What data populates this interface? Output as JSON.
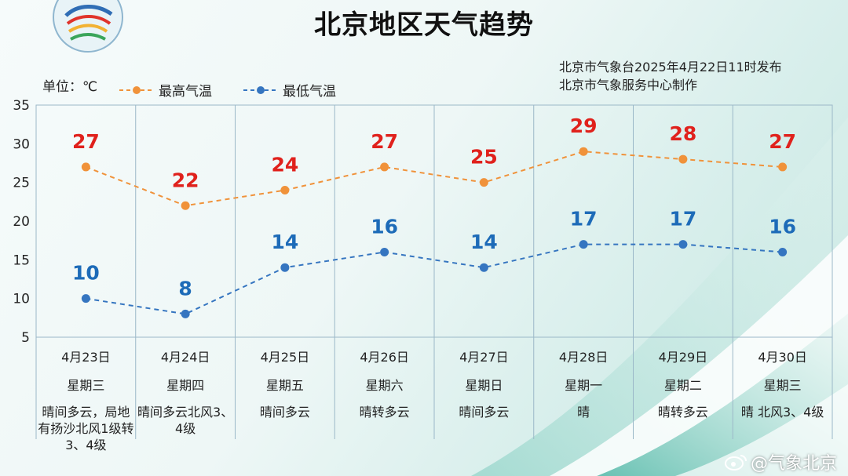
{
  "header": {
    "title": "北京地区天气趋势",
    "issuer_line1": "北京市气象台2025年4月22日11时发布",
    "issuer_line2": "北京市气象服务中心制作",
    "unit_label": "单位：℃"
  },
  "legend": {
    "high_label": "最高气温",
    "low_label": "最低气温"
  },
  "watermark": "@气象北京",
  "colors": {
    "high_line": "#f0923a",
    "high_label": "#e0211c",
    "low_line": "#3575c0",
    "low_label": "#1d6bb8",
    "grid": "#9bb8c8"
  },
  "chart_data": {
    "type": "line",
    "categories": [
      "4月23日",
      "4月24日",
      "4月25日",
      "4月26日",
      "4月27日",
      "4月28日",
      "4月29日",
      "4月30日"
    ],
    "weekdays": [
      "星期三",
      "星期四",
      "星期五",
      "星期六",
      "星期日",
      "星期一",
      "星期二",
      "星期三"
    ],
    "weather": [
      "晴间多云，局地有扬沙北风1级转3、4级",
      "晴间多云北风3、4级",
      "晴间多云",
      "晴转多云",
      "晴间多云",
      "晴",
      "晴转多云",
      "晴 北风3、4级"
    ],
    "series": [
      {
        "name": "最高气温",
        "values": [
          27,
          22,
          24,
          27,
          25,
          29,
          28,
          27
        ]
      },
      {
        "name": "最低气温",
        "values": [
          10,
          8,
          14,
          16,
          14,
          17,
          17,
          16
        ]
      }
    ],
    "ylim": [
      5,
      35
    ],
    "yticks": [
      5,
      10,
      15,
      20,
      25,
      30,
      35
    ],
    "ylabel": "单位：℃",
    "grid": true,
    "legend_position": "top-left"
  }
}
